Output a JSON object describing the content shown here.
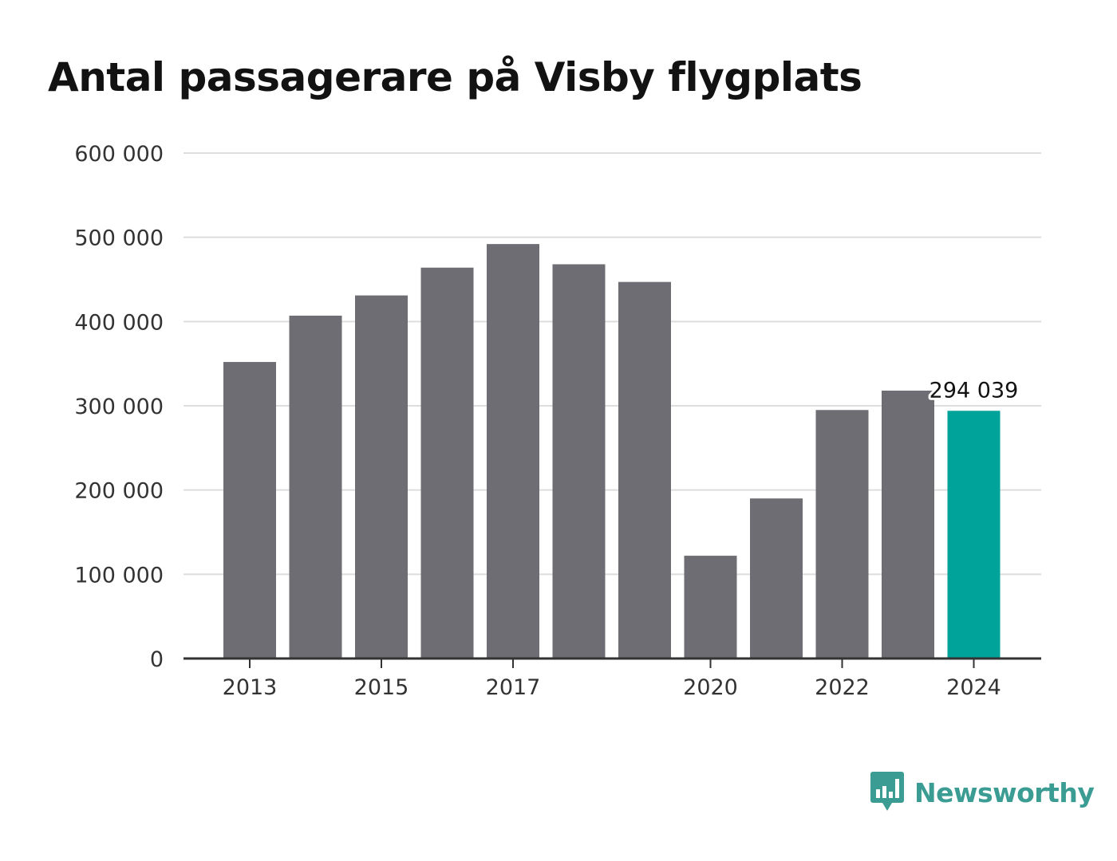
{
  "title": "Antal passagerare på Visby flygplats",
  "brand": {
    "name": "Newsworthy",
    "icon": "newsworthy-logo-icon",
    "color": "#3a9c92"
  },
  "colors": {
    "bar": "#6e6d73",
    "highlight": "#00a39a",
    "grid": "#dddddd",
    "axis": "#333333"
  },
  "chart_data": {
    "type": "bar",
    "title": "Antal passagerare på Visby flygplats",
    "xlabel": "",
    "ylabel": "",
    "categories": [
      "2013",
      "2014",
      "2015",
      "2016",
      "2017",
      "2018",
      "2019",
      "2020",
      "2021",
      "2022",
      "2023",
      "2024"
    ],
    "values": [
      352000,
      407000,
      431000,
      464000,
      492000,
      468000,
      447000,
      122000,
      190000,
      295000,
      318000,
      294039
    ],
    "highlight_index": 11,
    "highlight_label": "294 039",
    "ylim": [
      0,
      600000
    ],
    "yticks": [
      0,
      100000,
      200000,
      300000,
      400000,
      500000,
      600000
    ],
    "ytick_labels": [
      "0",
      "100 000",
      "200 000",
      "300 000",
      "400 000",
      "500 000",
      "600 000"
    ],
    "xtick_labels": [
      "2013",
      "2015",
      "2017",
      "2020",
      "2022",
      "2024"
    ],
    "grid": true,
    "legend": "none"
  }
}
